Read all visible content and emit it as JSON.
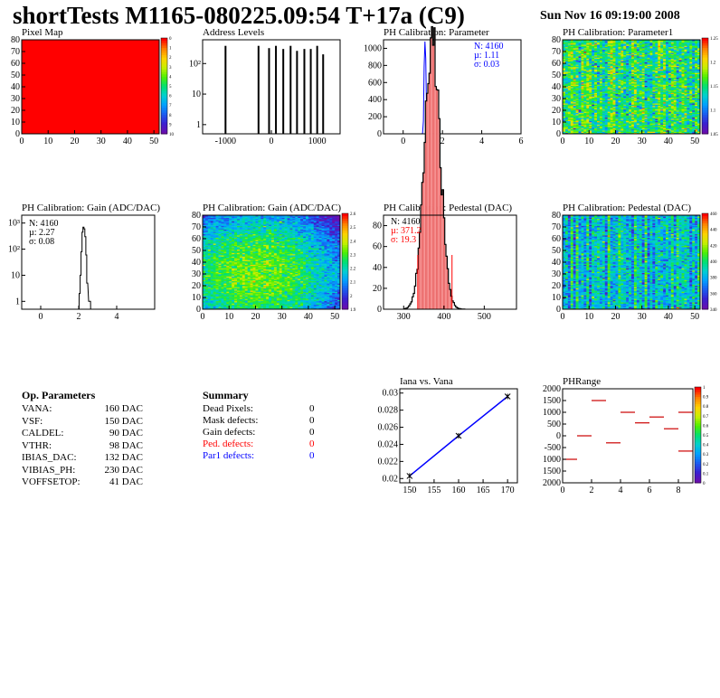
{
  "header": {
    "title": "shortTests M1165-080225.09:54 T+17a (C9)",
    "date": "Sun Nov 16 09:19:00 2008"
  },
  "palette": [
    "#6a0dad",
    "#3a1fd0",
    "#1a5cf0",
    "#00a0ff",
    "#00d0d0",
    "#00e070",
    "#50f000",
    "#c8f000",
    "#ffd000",
    "#ff8000",
    "#ff0000"
  ],
  "colors": {
    "hist": "#000000",
    "blue_curve": "#0000ff",
    "red": "#ff0000",
    "fill_red": "#ffb0b0"
  },
  "op_parameters": {
    "title": "Op. Parameters",
    "rows": [
      {
        "name": "VANA:",
        "value": "160 DAC"
      },
      {
        "name": "VSF:",
        "value": "150 DAC"
      },
      {
        "name": "CALDEL:",
        "value": "90 DAC"
      },
      {
        "name": "VTHR:",
        "value": "98 DAC"
      },
      {
        "name": "IBIAS_DAC:",
        "value": "132 DAC"
      },
      {
        "name": "VIBIAS_PH:",
        "value": "230 DAC"
      },
      {
        "name": "VOFFSETOP:",
        "value": "41 DAC"
      }
    ]
  },
  "summary": {
    "title": "Summary",
    "rows": [
      {
        "name": "Dead Pixels:",
        "value": "0",
        "color": "#000000"
      },
      {
        "name": "Mask defects:",
        "value": "0",
        "color": "#000000"
      },
      {
        "name": "Gain defects:",
        "value": "0",
        "color": "#000000"
      },
      {
        "name": "Ped. defects:",
        "value": "0",
        "color": "#ff0000"
      },
      {
        "name": "Par1 defects:",
        "value": "0",
        "color": "#0000ff"
      }
    ]
  },
  "chart_data": [
    {
      "id": "pixel_map",
      "type": "heatmap",
      "title": "Pixel Map",
      "xlim": [
        0,
        52
      ],
      "ylim": [
        0,
        80
      ],
      "xticks": [
        "0",
        "10",
        "20",
        "30",
        "40",
        "50"
      ],
      "yticks": [
        "0",
        "10",
        "20",
        "30",
        "40",
        "50",
        "60",
        "70",
        "80"
      ],
      "uniform_value": 10,
      "colorbar": {
        "min": 0,
        "max": 10,
        "labels": [
          "0",
          "1",
          "2",
          "3",
          "4",
          "5",
          "6",
          "7",
          "8",
          "9",
          "10"
        ]
      }
    },
    {
      "id": "address_levels",
      "type": "bar",
      "title": "Address Levels",
      "xlim": [
        -1500,
        1500
      ],
      "ylog": true,
      "ylim": [
        0.5,
        600
      ],
      "xticks": [
        "-1000",
        "0",
        "1000"
      ],
      "yticks": [
        "1",
        "10",
        "10²"
      ],
      "x": [
        -1000,
        -280,
        -50,
        100,
        260,
        420,
        560,
        720,
        860,
        1000,
        1130
      ],
      "values": [
        380,
        380,
        320,
        380,
        300,
        380,
        260,
        300,
        300,
        380,
        200
      ]
    },
    {
      "id": "ph_parameter",
      "type": "bar",
      "title": "PH Calibration: Parameter",
      "xlim": [
        -1,
        6
      ],
      "ylim": [
        0,
        1100
      ],
      "xticks": [
        "0",
        "2",
        "4",
        "6"
      ],
      "yticks": [
        "0",
        "200",
        "400",
        "600",
        "800",
        "1000"
      ],
      "x": [
        0.99,
        1.03,
        1.07,
        1.11,
        1.15,
        1.19,
        1.23
      ],
      "values": [
        10,
        150,
        780,
        1080,
        880,
        220,
        20
      ],
      "stats": [
        "N: 4160",
        "µ: 1.11",
        "σ: 0.03"
      ]
    },
    {
      "id": "ph_parameter1",
      "type": "heatmap",
      "title": "PH Calibration: Parameter1",
      "xlim": [
        0,
        52
      ],
      "ylim": [
        0,
        80
      ],
      "xticks": [
        "0",
        "10",
        "20",
        "30",
        "40",
        "50"
      ],
      "yticks": [
        "0",
        "10",
        "20",
        "30",
        "40",
        "50",
        "60",
        "70",
        "80"
      ],
      "colorbar": {
        "min": 0.9,
        "max": 1.3,
        "labels": [
          "1.25",
          "1.2",
          "1.15",
          "1.1",
          "1.05"
        ]
      }
    },
    {
      "id": "gain_hist",
      "type": "bar",
      "title": "PH Calibration: Gain (ADC/DAC)",
      "xlim": [
        -1,
        6
      ],
      "ylog": true,
      "ylim": [
        0.5,
        2000
      ],
      "xticks": [
        "0",
        "2",
        "4"
      ],
      "yticks": [
        "1",
        "10",
        "10²",
        "10³"
      ],
      "x": [
        2.05,
        2.1,
        2.15,
        2.2,
        2.25,
        2.3,
        2.35,
        2.4,
        2.45,
        2.55,
        2.6
      ],
      "values": [
        2,
        10,
        80,
        450,
        700,
        600,
        300,
        60,
        5,
        1,
        1
      ],
      "stats": [
        "N: 4160",
        "µ: 2.27",
        "σ: 0.08"
      ]
    },
    {
      "id": "gain_map",
      "type": "heatmap",
      "title": "PH Calibration: Gain (ADC/DAC)",
      "xlim": [
        0,
        52
      ],
      "ylim": [
        0,
        80
      ],
      "xticks": [
        "0",
        "10",
        "20",
        "30",
        "40",
        "50"
      ],
      "yticks": [
        "0",
        "10",
        "20",
        "30",
        "40",
        "50",
        "60",
        "70",
        "80"
      ],
      "colorbar": {
        "min": 1.85,
        "max": 2.65,
        "labels": [
          "2.6",
          "2.5",
          "2.4",
          "2.3",
          "2.2",
          "2.1",
          "2",
          "1.9"
        ]
      }
    },
    {
      "id": "pedestal_hist",
      "type": "bar",
      "title": "PH Calibration: Pedestal (DAC)",
      "xlim": [
        250,
        580
      ],
      "ylim": [
        0,
        90
      ],
      "xticks": [
        "300",
        "400",
        "500"
      ],
      "yticks": [
        "0",
        "20",
        "40",
        "60",
        "80"
      ],
      "mean": 371.2,
      "sigma": 19.3,
      "stats": [
        "N: 4160",
        "µ: 371.2",
        "σ: 19.3"
      ],
      "cut_lines": [
        335,
        420
      ]
    },
    {
      "id": "pedestal_map",
      "type": "heatmap",
      "title": "PH Calibration: Pedestal (DAC)",
      "xlim": [
        0,
        52
      ],
      "ylim": [
        0,
        80
      ],
      "xticks": [
        "0",
        "10",
        "20",
        "30",
        "40",
        "50"
      ],
      "yticks": [
        "0",
        "10",
        "20",
        "30",
        "40",
        "50",
        "60",
        "70",
        "80"
      ],
      "colorbar": {
        "min": 335,
        "max": 465,
        "labels": [
          "460",
          "440",
          "420",
          "400",
          "380",
          "360",
          "340"
        ]
      }
    },
    {
      "id": "iana_vs_vana",
      "type": "line",
      "title": "Iana vs. Vana",
      "xlim": [
        148,
        172
      ],
      "ylim": [
        0.0195,
        0.0305
      ],
      "xticks": [
        "150",
        "155",
        "160",
        "165",
        "170"
      ],
      "yticks": [
        "0.02",
        "0.022",
        "0.024",
        "0.026",
        "0.028",
        "0.03"
      ],
      "x": [
        150,
        160,
        170
      ],
      "values": [
        0.0203,
        0.025,
        0.0296
      ]
    },
    {
      "id": "ph_range",
      "type": "scatter",
      "title": "PHRange",
      "xlim": [
        0,
        9
      ],
      "ylim": [
        -2000,
        2000
      ],
      "xticks": [
        "0",
        "2",
        "4",
        "6",
        "8"
      ],
      "yticks": [
        "2000",
        "1500",
        "1000",
        "500",
        "0",
        "-500",
        "1000",
        "1500",
        "2000"
      ],
      "x": [
        0.5,
        1.5,
        2.5,
        3.5,
        4.5,
        5.5,
        6.5,
        7.5,
        8.5
      ],
      "values": [
        -1000,
        0,
        1500,
        -300,
        1000,
        550,
        800,
        300,
        1000
      ],
      "extra_marks": [
        {
          "x": 8.5,
          "y": -650
        }
      ],
      "colorbar": {
        "min": 0,
        "max": 1,
        "labels": [
          "1",
          "0.9",
          "0.8",
          "0.7",
          "0.6",
          "0.5",
          "0.4",
          "0.3",
          "0.2",
          "0.1",
          "0"
        ]
      }
    }
  ]
}
